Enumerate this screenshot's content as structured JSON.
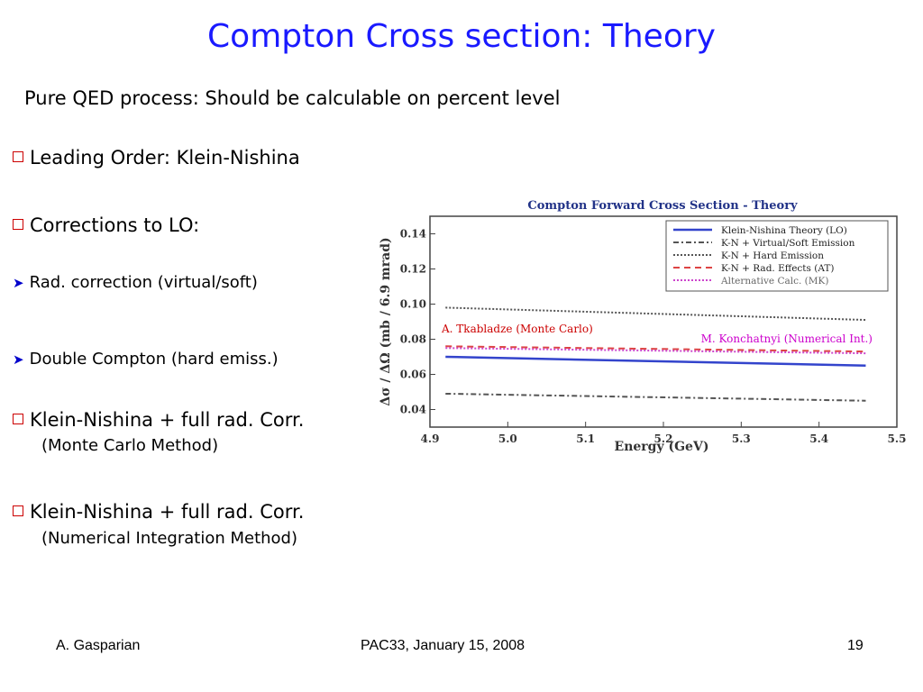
{
  "slide": {
    "title": "Compton Cross section: Theory",
    "subtitle": "Pure QED process: Should be calculable on percent level"
  },
  "bullets": [
    {
      "text": "Leading Order: Klein-Nishina",
      "level": 1
    },
    {
      "text": "Corrections to LO:",
      "level": 1
    },
    {
      "text": "Rad. correction (virtual/soft)",
      "level": 2
    },
    {
      "text": "Double Compton (hard emiss.)",
      "level": 2
    },
    {
      "text": "Klein-Nishina + full rad. Corr.",
      "level": 1,
      "note": "(Monte Carlo Method)"
    },
    {
      "text": "Klein-Nishina + full rad. Corr.",
      "level": 1,
      "note": "(Numerical Integration Method)"
    }
  ],
  "footer": {
    "author": "A. Gasparian",
    "event": "PAC33, January 15, 2008",
    "page": "19"
  },
  "colors": {
    "title": "#1a1aff",
    "bullet_box": "#cc0000",
    "arrow": "#0000cc"
  },
  "chart_data": {
    "type": "line",
    "title": "Compton Forward Cross Section - Theory",
    "xlabel": "Energy  (GeV)",
    "ylabel": "Δσ / ΔΩ  (mb / 6.9 mrad)",
    "xlim": [
      4.9,
      5.5
    ],
    "ylim": [
      0.03,
      0.15
    ],
    "xticks": [
      "4.9",
      "5.0",
      "5.1",
      "5.2",
      "5.3",
      "5.4",
      "5.5"
    ],
    "yticks": [
      "0.04",
      "0.06",
      "0.08",
      "0.10",
      "0.12",
      "0.14"
    ],
    "grid": false,
    "legend_position": "top-right",
    "series": [
      {
        "name": "Klein-Nishina Theory (LO)",
        "style": "solid",
        "color": "#3344cc",
        "x": [
          4.92,
          5.46
        ],
        "y": [
          0.07,
          0.065
        ]
      },
      {
        "name": "K-N + Virtual/Soft Emission",
        "style": "dashdot",
        "color": "#555555",
        "x": [
          4.92,
          5.46
        ],
        "y": [
          0.049,
          0.045
        ]
      },
      {
        "name": "K-N + Hard Emission",
        "style": "dotted",
        "color": "#555555",
        "x": [
          4.92,
          5.46
        ],
        "y": [
          0.098,
          0.091
        ]
      },
      {
        "name": "K-N + Rad. Effects (AT)",
        "style": "dashed",
        "color": "#dd4444",
        "x": [
          4.92,
          5.46
        ],
        "y": [
          0.076,
          0.073
        ]
      },
      {
        "name": "Alternative Calc. (MK)",
        "style": "dotted",
        "color": "#cc44cc",
        "x": [
          4.92,
          5.46
        ],
        "y": [
          0.075,
          0.072
        ]
      }
    ],
    "annotations": [
      {
        "text": "A. Tkabladze (Monte Carlo)",
        "color": "#cc0000"
      },
      {
        "text": "M. Konchatnyi (Numerical Int.)",
        "color": "#cc00cc"
      }
    ]
  }
}
